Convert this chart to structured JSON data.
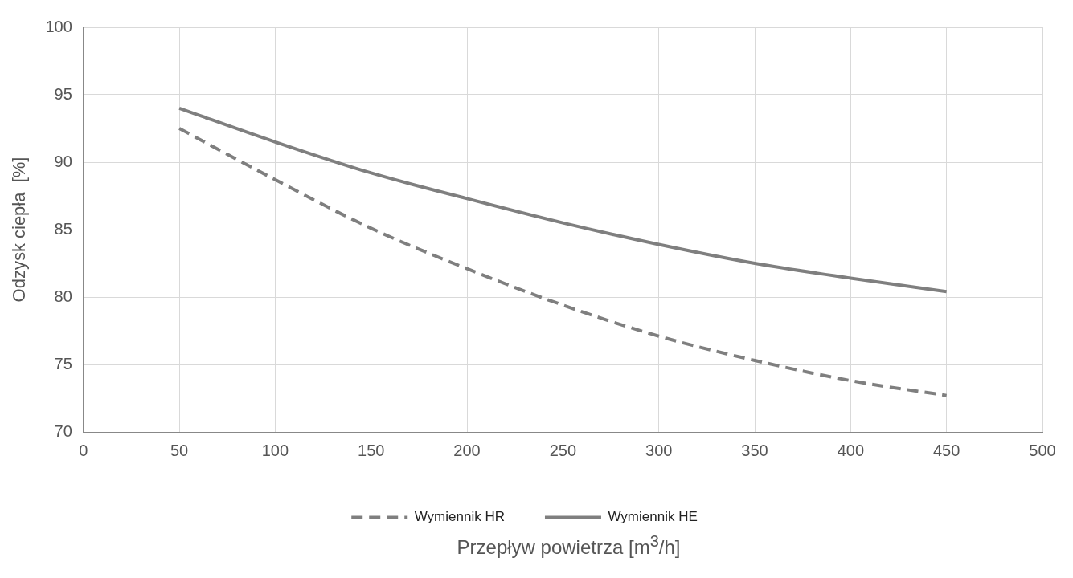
{
  "chart_data": {
    "type": "line",
    "xlabel": "Przepływ powietrza [m$^{3}$/h]",
    "ylabel": "Odzysk ciepła  [%]",
    "x": [
      50,
      100,
      150,
      200,
      250,
      300,
      350,
      400,
      450
    ],
    "series": [
      {
        "name": "Wymiennik HR",
        "color": "#7f7f7f",
        "line_style": "dashed",
        "values": [
          92.5,
          88.7,
          85.1,
          82.1,
          79.4,
          77.1,
          75.3,
          73.8,
          72.7
        ]
      },
      {
        "name": "Wymiennik HE",
        "color": "#7f7f7f",
        "line_style": "solid",
        "values": [
          94.0,
          91.5,
          89.2,
          87.3,
          85.5,
          83.9,
          82.5,
          81.4,
          80.4
        ]
      }
    ],
    "xlim": [
      0,
      500
    ],
    "xticks": [
      0,
      50,
      100,
      150,
      200,
      250,
      300,
      350,
      400,
      450,
      500
    ],
    "ylim": [
      70,
      100
    ],
    "yticks": [
      70,
      75,
      80,
      85,
      90,
      95,
      100
    ],
    "grid": true,
    "legend": "bottom",
    "marker": "none"
  }
}
